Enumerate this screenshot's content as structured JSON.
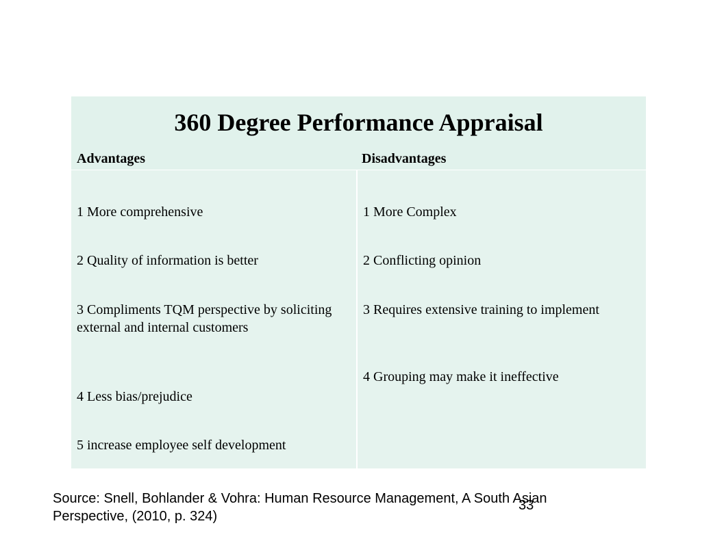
{
  "table": {
    "title": "360 Degree Performance Appraisal",
    "headers": {
      "advantages": "Advantages",
      "disadvantages": "Disadvantages"
    },
    "advantages": [
      "1 More comprehensive",
      "2 Quality of information is better",
      "3 Compliments TQM perspective by soliciting external and internal customers",
      "4 Less bias/prejudice",
      "5 increase employee self development"
    ],
    "disadvantages": [
      "1 More Complex",
      "2 Conflicting opinion",
      "3 Requires extensive training to implement",
      "4 Grouping may make it ineffective"
    ],
    "colors": {
      "header_background": "#e1f2ec",
      "body_background": "#e5f3ee"
    }
  },
  "footer": {
    "source": "Source: Snell, Bohlander & Vohra: Human Resource Management, A South Asian Perspective, (2010, p. 324)",
    "page_number": "33"
  }
}
